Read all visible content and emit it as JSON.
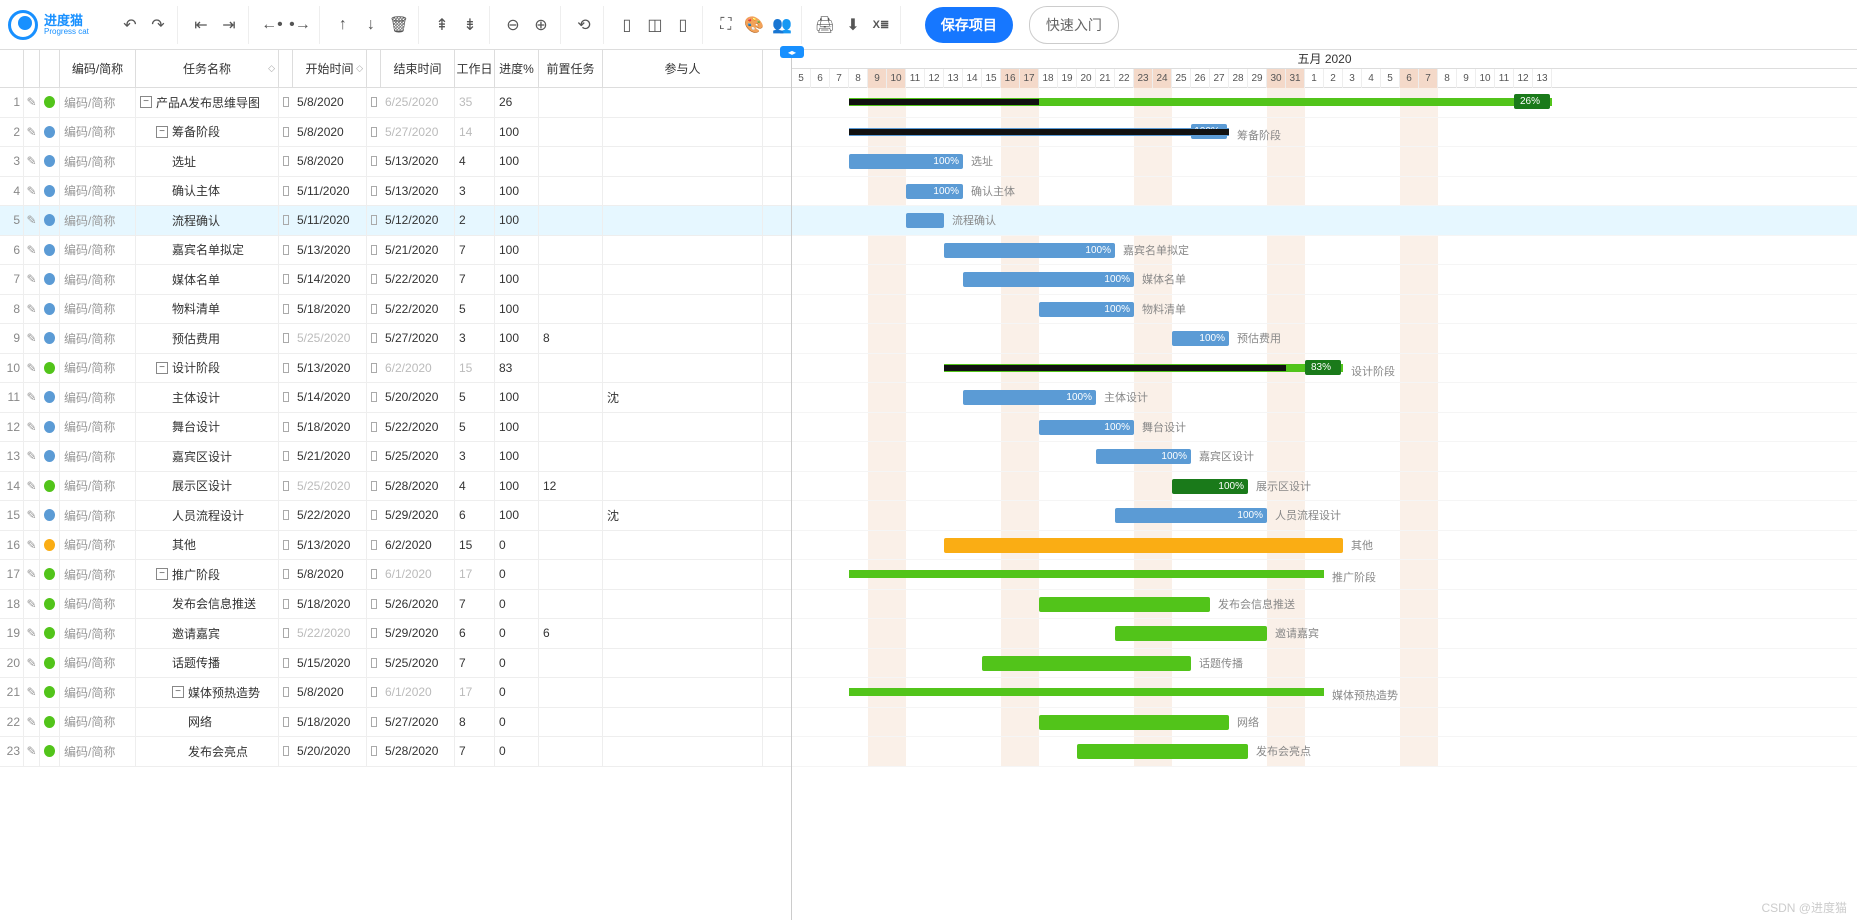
{
  "app": {
    "name": "进度猫",
    "sub": "Progress cat"
  },
  "buttons": {
    "save": "保存项目",
    "quickstart": "快速入门"
  },
  "headers": {
    "code": "编码/简称",
    "name": "任务名称",
    "start": "开始时间",
    "end": "结束时间",
    "days": "工作日",
    "progress": "进度%",
    "pred": "前置任务",
    "part": "参与人"
  },
  "timeline": {
    "month": "五月 2020",
    "startDay": 5,
    "cellWidth": 19,
    "days": [
      {
        "d": 5
      },
      {
        "d": 6
      },
      {
        "d": 7
      },
      {
        "d": 8
      },
      {
        "d": 9,
        "w": true
      },
      {
        "d": 10,
        "w": true
      },
      {
        "d": 11
      },
      {
        "d": 12
      },
      {
        "d": 13
      },
      {
        "d": 14
      },
      {
        "d": 15
      },
      {
        "d": 16,
        "w": true
      },
      {
        "d": 17,
        "w": true
      },
      {
        "d": 18
      },
      {
        "d": 19
      },
      {
        "d": 20
      },
      {
        "d": 21
      },
      {
        "d": 22
      },
      {
        "d": 23,
        "w": true
      },
      {
        "d": 24,
        "w": true
      },
      {
        "d": 25
      },
      {
        "d": 26
      },
      {
        "d": 27
      },
      {
        "d": 28
      },
      {
        "d": 29
      },
      {
        "d": 30,
        "w": true
      },
      {
        "d": 31,
        "w": true
      },
      {
        "d": 1
      },
      {
        "d": 2
      },
      {
        "d": 3
      },
      {
        "d": 4
      },
      {
        "d": 5
      },
      {
        "d": 6,
        "w": true
      },
      {
        "d": 7,
        "w": true
      },
      {
        "d": 8
      },
      {
        "d": 9
      },
      {
        "d": 10
      },
      {
        "d": 11
      },
      {
        "d": 12
      },
      {
        "d": 13
      }
    ]
  },
  "colors": {
    "blue": "#5b9bd5",
    "green": "#52c41a",
    "darkgreen": "#1a7a1a",
    "orange": "#faad14",
    "summaryDark": "#222"
  },
  "selectedRow": 5,
  "tasks": [
    {
      "idx": 1,
      "dot": "#52c41a",
      "code": "编码/简称",
      "name": "产品A发布思维导图",
      "level": 0,
      "expand": "-",
      "start": "5/8/2020",
      "end": "6/25/2020",
      "endDim": true,
      "days": "35",
      "daysDim": true,
      "prog": "26",
      "barStart": 8,
      "barEnd": 44,
      "barColor": "#52c41a",
      "type": "summary",
      "overlayEnd": 17,
      "pct": "26%",
      "pctColor": "#1a7a1a"
    },
    {
      "idx": 2,
      "dot": "#5b9bd5",
      "code": "编码/简称",
      "name": "筹备阶段",
      "level": 1,
      "expand": "-",
      "start": "5/8/2020",
      "end": "5/27/2020",
      "endDim": true,
      "days": "14",
      "daysDim": true,
      "prog": "100",
      "barStart": 8,
      "barEnd": 27,
      "barColor": "#5b9bd5",
      "type": "summary",
      "overlayEnd": 27,
      "pct": "100%",
      "label": "筹备阶段"
    },
    {
      "idx": 3,
      "dot": "#5b9bd5",
      "code": "编码/简称",
      "name": "选址",
      "level": 2,
      "start": "5/8/2020",
      "end": "5/13/2020",
      "days": "4",
      "prog": "100",
      "barStart": 8,
      "barEnd": 13,
      "barColor": "#5b9bd5",
      "pct": "100%",
      "label": "选址"
    },
    {
      "idx": 4,
      "dot": "#5b9bd5",
      "code": "编码/简称",
      "name": "确认主体",
      "level": 2,
      "start": "5/11/2020",
      "end": "5/13/2020",
      "days": "3",
      "prog": "100",
      "barStart": 11,
      "barEnd": 13,
      "barColor": "#5b9bd5",
      "pct": "100%",
      "label": "确认主体"
    },
    {
      "idx": 5,
      "dot": "#5b9bd5",
      "code": "编码/简称",
      "name": "流程确认",
      "level": 2,
      "start": "5/11/2020",
      "end": "5/12/2020",
      "days": "2",
      "prog": "100",
      "barStart": 11,
      "barEnd": 12,
      "barColor": "#5b9bd5",
      "label": "流程确认"
    },
    {
      "idx": 6,
      "dot": "#5b9bd5",
      "code": "编码/简称",
      "name": "嘉宾名单拟定",
      "level": 2,
      "start": "5/13/2020",
      "end": "5/21/2020",
      "days": "7",
      "prog": "100",
      "barStart": 13,
      "barEnd": 21,
      "barColor": "#5b9bd5",
      "pct": "100%",
      "label": "嘉宾名单拟定",
      "linkTo": 9
    },
    {
      "idx": 7,
      "dot": "#5b9bd5",
      "code": "编码/简称",
      "name": "媒体名单",
      "level": 2,
      "start": "5/14/2020",
      "end": "5/22/2020",
      "days": "7",
      "prog": "100",
      "barStart": 14,
      "barEnd": 22,
      "barColor": "#5b9bd5",
      "pct": "100%",
      "label": "媒体名单"
    },
    {
      "idx": 8,
      "dot": "#5b9bd5",
      "code": "编码/简称",
      "name": "物料清单",
      "level": 2,
      "start": "5/18/2020",
      "end": "5/22/2020",
      "days": "5",
      "prog": "100",
      "barStart": 18,
      "barEnd": 22,
      "barColor": "#5b9bd5",
      "pct": "100%",
      "label": "物料清单",
      "linkTo": 9
    },
    {
      "idx": 9,
      "dot": "#5b9bd5",
      "code": "编码/简称",
      "name": "预估费用",
      "level": 2,
      "start": "5/25/2020",
      "startDim": true,
      "end": "5/27/2020",
      "days": "3",
      "prog": "100",
      "pred": "8",
      "barStart": 25,
      "barEnd": 27,
      "barColor": "#5b9bd5",
      "pct": "100%",
      "label": "预估费用"
    },
    {
      "idx": 10,
      "dot": "#52c41a",
      "code": "编码/简称",
      "name": "设计阶段",
      "level": 1,
      "expand": "-",
      "start": "5/13/2020",
      "end": "6/2/2020",
      "endDim": true,
      "days": "15",
      "daysDim": true,
      "prog": "83",
      "barStart": 13,
      "barEnd": 33,
      "barColor": "#52c41a",
      "type": "summary",
      "overlayEnd": 30,
      "pct": "83%",
      "pctColor": "#1a7a1a",
      "label": "设计阶段"
    },
    {
      "idx": 11,
      "dot": "#5b9bd5",
      "code": "编码/简称",
      "name": "主体设计",
      "level": 2,
      "start": "5/14/2020",
      "end": "5/20/2020",
      "days": "5",
      "prog": "100",
      "part": "沈",
      "barStart": 14,
      "barEnd": 20,
      "barColor": "#5b9bd5",
      "pct": "100%",
      "label": "主体设计"
    },
    {
      "idx": 12,
      "dot": "#5b9bd5",
      "code": "编码/简称",
      "name": "舞台设计",
      "level": 2,
      "start": "5/18/2020",
      "end": "5/22/2020",
      "days": "5",
      "prog": "100",
      "barStart": 18,
      "barEnd": 22,
      "barColor": "#5b9bd5",
      "pct": "100%",
      "label": "舞台设计",
      "linkTo": 14
    },
    {
      "idx": 13,
      "dot": "#5b9bd5",
      "code": "编码/简称",
      "name": "嘉宾区设计",
      "level": 2,
      "start": "5/21/2020",
      "end": "5/25/2020",
      "days": "3",
      "prog": "100",
      "barStart": 21,
      "barEnd": 25,
      "barColor": "#5b9bd5",
      "pct": "100%",
      "label": "嘉宾区设计"
    },
    {
      "idx": 14,
      "dot": "#52c41a",
      "code": "编码/简称",
      "name": "展示区设计",
      "level": 2,
      "start": "5/25/2020",
      "startDim": true,
      "end": "5/28/2020",
      "days": "4",
      "prog": "100",
      "pred": "12",
      "barStart": 25,
      "barEnd": 28,
      "barColor": "#1a7a1a",
      "pct": "100%",
      "label": "展示区设计"
    },
    {
      "idx": 15,
      "dot": "#5b9bd5",
      "code": "编码/简称",
      "name": "人员流程设计",
      "level": 2,
      "start": "5/22/2020",
      "end": "5/29/2020",
      "days": "6",
      "prog": "100",
      "part": "沈",
      "barStart": 22,
      "barEnd": 29,
      "barColor": "#5b9bd5",
      "pct": "100%",
      "label": "人员流程设计"
    },
    {
      "idx": 16,
      "dot": "#faad14",
      "code": "编码/简称",
      "name": "其他",
      "level": 2,
      "start": "5/13/2020",
      "end": "6/2/2020",
      "days": "15",
      "prog": "0",
      "barStart": 13,
      "barEnd": 33,
      "barColor": "#faad14",
      "label": "其他"
    },
    {
      "idx": 17,
      "dot": "#52c41a",
      "code": "编码/简称",
      "name": "推广阶段",
      "level": 1,
      "expand": "-",
      "start": "5/8/2020",
      "end": "6/1/2020",
      "endDim": true,
      "days": "17",
      "daysDim": true,
      "prog": "0",
      "barStart": 8,
      "barEnd": 32,
      "barColor": "#52c41a",
      "type": "summary",
      "label": "推广阶段"
    },
    {
      "idx": 18,
      "dot": "#52c41a",
      "code": "编码/简称",
      "name": "发布会信息推送",
      "level": 2,
      "start": "5/18/2020",
      "end": "5/26/2020",
      "days": "7",
      "prog": "0",
      "barStart": 18,
      "barEnd": 26,
      "barColor": "#52c41a",
      "label": "发布会信息推送",
      "linkTo": 19
    },
    {
      "idx": 19,
      "dot": "#52c41a",
      "code": "编码/简称",
      "name": "邀请嘉宾",
      "level": 2,
      "start": "5/22/2020",
      "startDim": true,
      "end": "5/29/2020",
      "days": "6",
      "prog": "0",
      "pred": "6",
      "barStart": 22,
      "barEnd": 29,
      "barColor": "#52c41a",
      "label": "邀请嘉宾"
    },
    {
      "idx": 20,
      "dot": "#52c41a",
      "code": "编码/简称",
      "name": "话题传播",
      "level": 2,
      "start": "5/15/2020",
      "end": "5/25/2020",
      "days": "7",
      "prog": "0",
      "barStart": 15,
      "barEnd": 25,
      "barColor": "#52c41a",
      "label": "话题传播"
    },
    {
      "idx": 21,
      "dot": "#52c41a",
      "code": "编码/简称",
      "name": "媒体预热造势",
      "level": 2,
      "expand": "-",
      "start": "5/8/2020",
      "end": "6/1/2020",
      "endDim": true,
      "days": "17",
      "daysDim": true,
      "prog": "0",
      "barStart": 8,
      "barEnd": 32,
      "barColor": "#52c41a",
      "type": "summary",
      "label": "媒体预热造势"
    },
    {
      "idx": 22,
      "dot": "#52c41a",
      "code": "编码/简称",
      "name": "网络",
      "level": 3,
      "start": "5/18/2020",
      "end": "5/27/2020",
      "days": "8",
      "prog": "0",
      "barStart": 18,
      "barEnd": 27,
      "barColor": "#52c41a",
      "label": "网络"
    },
    {
      "idx": 23,
      "dot": "#52c41a",
      "code": "编码/简称",
      "name": "发布会亮点",
      "level": 3,
      "start": "5/20/2020",
      "end": "5/28/2020",
      "days": "7",
      "prog": "0",
      "barStart": 20,
      "barEnd": 28,
      "barColor": "#52c41a",
      "label": "发布会亮点"
    }
  ],
  "watermark": "CSDN @进度猫"
}
